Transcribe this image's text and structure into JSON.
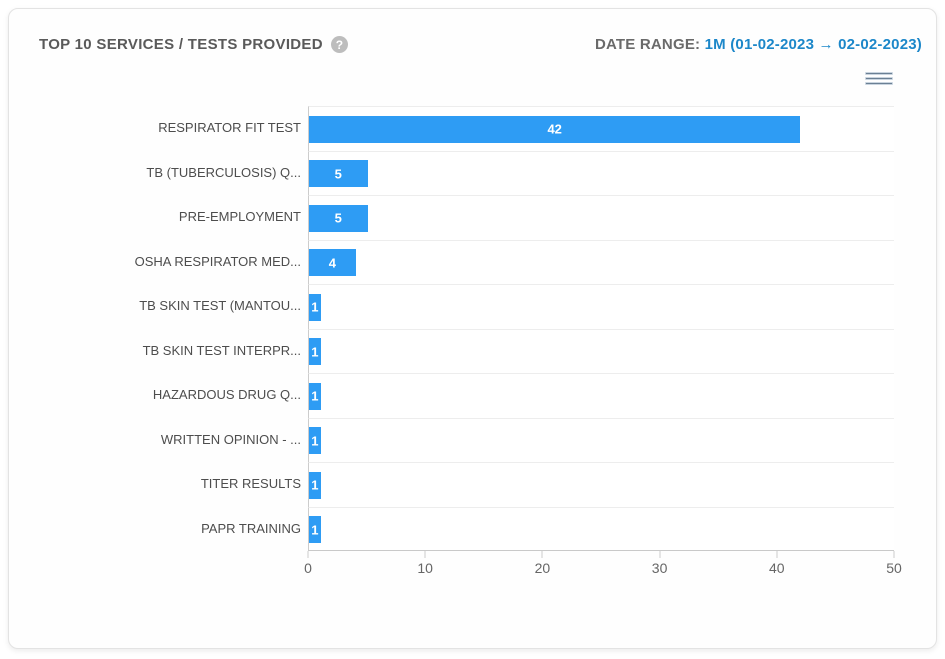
{
  "header": {
    "title": "TOP 10 SERVICES / TESTS PROVIDED",
    "help_glyph": "?",
    "date_range_label": "DATE RANGE:",
    "date_range_value": "1M (01-02-2023 → 02-02-2023)"
  },
  "toolbar": {
    "menu_icon": "hamburger-menu"
  },
  "colors": {
    "bar": "#2E9CF4",
    "date_range_value_text": "#1C87C9",
    "title_text": "#5A5A5A",
    "axis_line": "#C9C9C9",
    "grid_line": "#EDEDED"
  },
  "chart_data": {
    "type": "bar",
    "orientation": "horizontal",
    "title": "TOP 10 SERVICES / TESTS PROVIDED",
    "categories": [
      "RESPIRATOR FIT TEST",
      "TB (TUBERCULOSIS) Q...",
      "PRE-EMPLOYMENT",
      "OSHA RESPIRATOR MED...",
      "TB SKIN TEST (MANTOU...",
      "TB SKIN TEST INTERPR...",
      "HAZARDOUS DRUG Q...",
      "WRITTEN OPINION - ...",
      "TITER RESULTS",
      "PAPR TRAINING"
    ],
    "values": [
      42,
      5,
      5,
      4,
      1,
      1,
      1,
      1,
      1,
      1
    ],
    "xlabel": "",
    "ylabel": "",
    "xlim": [
      0,
      50
    ],
    "xticks": [
      0,
      10,
      20,
      30,
      40,
      50
    ],
    "grid": "horizontal-row-separators-only",
    "legend": "none",
    "bar_color": "#2E9CF4",
    "value_label_style": "inside-center-white-bold"
  }
}
